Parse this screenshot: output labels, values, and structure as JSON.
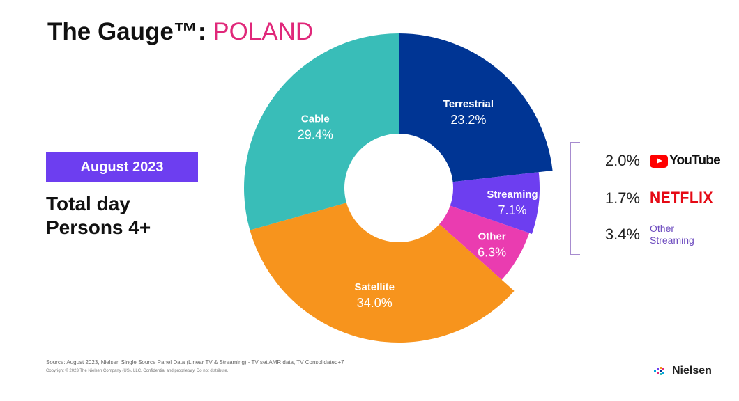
{
  "header": {
    "title_main": "The Gauge™:",
    "title_country": "POLAND"
  },
  "period_badge": "August 2023",
  "metric": {
    "line1": "Total day",
    "line2": "Persons 4+"
  },
  "chart_data": {
    "type": "pie",
    "title": "The Gauge™: POLAND",
    "slices": [
      {
        "label": "Terrestrial",
        "value": 23.2,
        "value_label": "23.2%",
        "color": "#003594"
      },
      {
        "label": "Streaming",
        "value": 7.1,
        "value_label": "7.1%",
        "color": "#6d3ef0"
      },
      {
        "label": "Other",
        "value": 6.3,
        "value_label": "6.3%",
        "color": "#ea3cb0"
      },
      {
        "label": "Satellite",
        "value": 34.0,
        "value_label": "34.0%",
        "color": "#f7941d"
      },
      {
        "label": "Cable",
        "value": 29.4,
        "value_label": "29.4%",
        "color": "#39bdb8"
      }
    ],
    "streaming_breakdown": [
      {
        "value": 2.0,
        "value_label": "2.0%",
        "brand": "youtube-logo",
        "brand_word": "YouTube"
      },
      {
        "value": 1.7,
        "value_label": "1.7%",
        "brand": "netflix-logo",
        "brand_word": "NETFLIX"
      },
      {
        "value": 3.4,
        "value_label": "3.4%",
        "name_line1": "Other",
        "name_line2": "Streaming"
      }
    ]
  },
  "footer": {
    "source": "Source: August  2023, Nielsen Single Source Panel Data (Linear TV & Streaming) - TV set AMR data, TV Consolidated+7",
    "copyright": "Copyright © 2023 The Nielsen Company (US), LLC. Confidential and proprietary. Do not distribute.",
    "logo_word": "Nielsen"
  }
}
